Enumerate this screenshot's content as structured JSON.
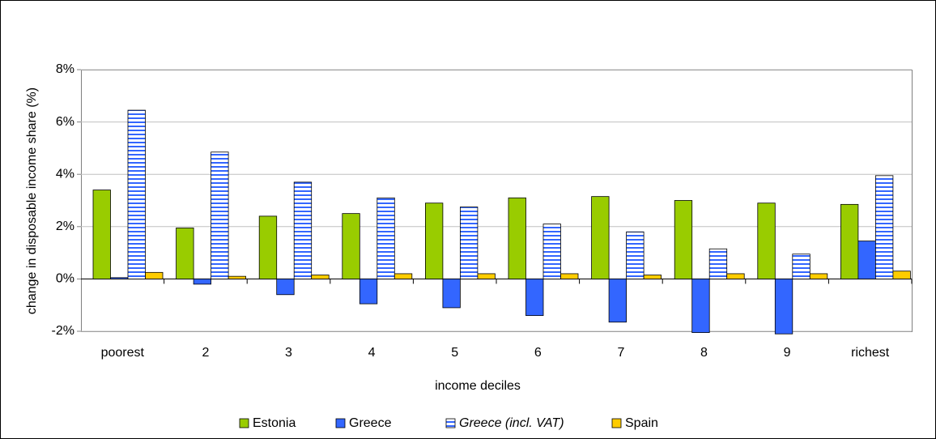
{
  "chart_data": {
    "type": "bar",
    "y_label": "change in disposable income share (%)",
    "x_label": "income deciles",
    "categories": [
      "poorest",
      "2",
      "3",
      "4",
      "5",
      "6",
      "7",
      "8",
      "9",
      "richest"
    ],
    "series": [
      {
        "name": "Estonia",
        "color": "#99cc00",
        "values": [
          3.4,
          1.95,
          2.4,
          2.5,
          2.9,
          3.1,
          3.15,
          3.0,
          2.9,
          2.85
        ]
      },
      {
        "name": "Greece",
        "color": "#3366ff",
        "values": [
          0.05,
          -0.2,
          -0.6,
          -0.95,
          -1.1,
          -1.4,
          -1.65,
          -2.05,
          -2.1,
          1.45
        ]
      },
      {
        "name": "Greece (incl. VAT)",
        "color": "#3366ff",
        "pattern": "horizontal-stripes",
        "italic": true,
        "values": [
          6.45,
          4.85,
          3.7,
          3.1,
          2.75,
          2.1,
          1.8,
          1.15,
          0.95,
          3.95
        ]
      },
      {
        "name": "Spain",
        "color": "#ffcc00",
        "values": [
          0.25,
          0.1,
          0.15,
          0.2,
          0.2,
          0.2,
          0.15,
          0.2,
          0.2,
          0.3
        ]
      }
    ],
    "ylim": [
      -2,
      8
    ],
    "yticks": [
      {
        "value": -2,
        "label": "-2%"
      },
      {
        "value": 0,
        "label": "0%"
      },
      {
        "value": 2,
        "label": "2%"
      },
      {
        "value": 4,
        "label": "4%"
      },
      {
        "value": 6,
        "label": "6%"
      },
      {
        "value": 8,
        "label": "8%"
      }
    ],
    "grid": true,
    "legend": "bottom"
  }
}
